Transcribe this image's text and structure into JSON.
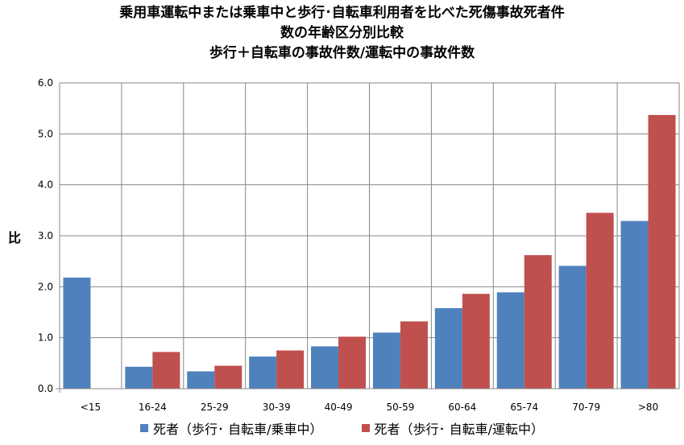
{
  "chart_data": {
    "type": "bar",
    "title": [
      "乗用車運転中または乗車中と歩行･自転車利用者を比べた死傷事故死者件",
      "数の年齢区分別比較",
      "歩行＋自転車の事故件数/運転中の事故件数"
    ],
    "ylabel": "比",
    "xlabel": "",
    "ylim": [
      0,
      6
    ],
    "yticks": [
      "0.0",
      "1.0",
      "2.0",
      "3.0",
      "4.0",
      "5.0",
      "6.0"
    ],
    "grid": true,
    "legend_position": "bottom",
    "categories": [
      "<15",
      "16-24",
      "25-29",
      "30-39",
      "40-49",
      "50-59",
      "60-64",
      "65-74",
      "70-79",
      ">80"
    ],
    "series": [
      {
        "name": "死者（歩行･ 自転車/乗車中）",
        "color": "#4F81BD",
        "values": [
          2.18,
          0.43,
          0.34,
          0.63,
          0.83,
          1.1,
          1.58,
          1.89,
          2.41,
          3.29
        ]
      },
      {
        "name": "死者（歩行･ 自転車/運転中）",
        "color": "#C0504D",
        "values": [
          null,
          0.72,
          0.45,
          0.75,
          1.02,
          1.32,
          1.86,
          2.62,
          3.45,
          5.37
        ]
      }
    ]
  }
}
